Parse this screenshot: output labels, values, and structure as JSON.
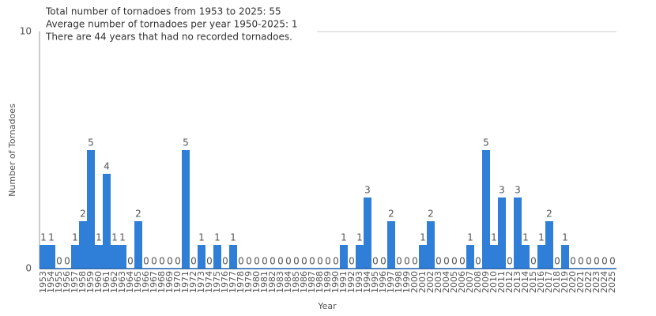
{
  "chart_data": {
    "type": "bar",
    "annotations": [
      "Total number of tornadoes from 1953 to 2025: 55",
      "Average number of tornadoes per year 1950-2025: 1",
      "There are 44 years that had no recorded tornadoes."
    ],
    "x_label": "Year",
    "y_label": "Number of Tornadoes",
    "categories": [
      "1953",
      "1954",
      "1955",
      "1956",
      "1957",
      "1958",
      "1959",
      "1960",
      "1961",
      "1962",
      "1963",
      "1964",
      "1965",
      "1966",
      "1967",
      "1968",
      "1969",
      "1970",
      "1971",
      "1972",
      "1973",
      "1974",
      "1975",
      "1976",
      "1977",
      "1978",
      "1979",
      "1980",
      "1981",
      "1982",
      "1983",
      "1984",
      "1985",
      "1986",
      "1987",
      "1988",
      "1989",
      "1990",
      "1991",
      "1992",
      "1993",
      "1994",
      "1995",
      "1996",
      "1997",
      "1998",
      "1999",
      "2000",
      "2001",
      "2002",
      "2003",
      "2004",
      "2005",
      "2006",
      "2007",
      "2008",
      "2009",
      "2010",
      "2011",
      "2012",
      "2013",
      "2014",
      "2015",
      "2016",
      "2017",
      "2018",
      "2019",
      "2020",
      "2021",
      "2022",
      "2023",
      "2024",
      "2025"
    ],
    "values": [
      1,
      1,
      0,
      0,
      1,
      2,
      5,
      1,
      4,
      1,
      1,
      0,
      2,
      0,
      0,
      0,
      0,
      0,
      5,
      0,
      1,
      0,
      1,
      0,
      1,
      0,
      0,
      0,
      0,
      0,
      0,
      0,
      0,
      0,
      0,
      0,
      0,
      0,
      1,
      0,
      1,
      3,
      0,
      0,
      2,
      0,
      0,
      0,
      1,
      2,
      0,
      0,
      0,
      0,
      1,
      0,
      5,
      1,
      3,
      0,
      3,
      1,
      0,
      1,
      2,
      0,
      1,
      0,
      0,
      0,
      0,
      0,
      0
    ],
    "color": "#2f7ed8",
    "ylim": [
      0,
      10
    ],
    "yticks": [
      0,
      10
    ],
    "grid": true
  }
}
